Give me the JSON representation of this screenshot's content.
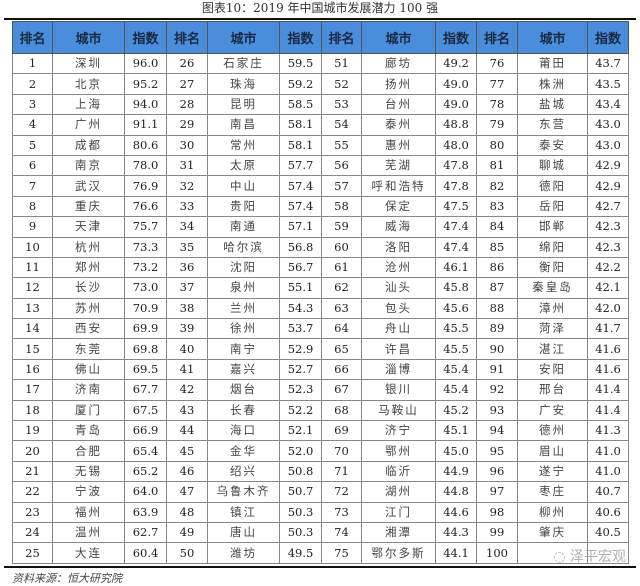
{
  "title": "图表10：2019 年中国城市发展潜力 100 强",
  "headers": {
    "rank": "排名",
    "city": "城市",
    "index": "指数"
  },
  "groups": [
    [
      [
        "1",
        "深圳",
        "96.0"
      ],
      [
        "2",
        "北京",
        "95.2"
      ],
      [
        "3",
        "上海",
        "94.0"
      ],
      [
        "4",
        "广州",
        "91.1"
      ],
      [
        "5",
        "成都",
        "80.6"
      ],
      [
        "6",
        "南京",
        "78.0"
      ],
      [
        "7",
        "武汉",
        "76.9"
      ],
      [
        "8",
        "重庆",
        "76.6"
      ],
      [
        "9",
        "天津",
        "75.7"
      ],
      [
        "10",
        "杭州",
        "73.3"
      ],
      [
        "11",
        "郑州",
        "73.2"
      ],
      [
        "12",
        "长沙",
        "73.0"
      ],
      [
        "13",
        "苏州",
        "70.9"
      ],
      [
        "14",
        "西安",
        "69.9"
      ],
      [
        "15",
        "东莞",
        "69.8"
      ],
      [
        "16",
        "佛山",
        "69.5"
      ],
      [
        "17",
        "济南",
        "67.7"
      ],
      [
        "18",
        "厦门",
        "67.5"
      ],
      [
        "19",
        "青岛",
        "66.9"
      ],
      [
        "20",
        "合肥",
        "65.4"
      ],
      [
        "21",
        "无锡",
        "65.2"
      ],
      [
        "22",
        "宁波",
        "64.0"
      ],
      [
        "23",
        "福州",
        "63.9"
      ],
      [
        "24",
        "温州",
        "62.7"
      ],
      [
        "25",
        "大连",
        "60.4"
      ]
    ],
    [
      [
        "26",
        "石家庄",
        "59.5"
      ],
      [
        "27",
        "珠海",
        "59.2"
      ],
      [
        "28",
        "昆明",
        "58.5"
      ],
      [
        "29",
        "南昌",
        "58.1"
      ],
      [
        "30",
        "常州",
        "58.1"
      ],
      [
        "31",
        "太原",
        "57.7"
      ],
      [
        "32",
        "中山",
        "57.4"
      ],
      [
        "33",
        "贵阳",
        "57.4"
      ],
      [
        "34",
        "南通",
        "57.1"
      ],
      [
        "35",
        "哈尔滨",
        "56.8"
      ],
      [
        "36",
        "沈阳",
        "56.7"
      ],
      [
        "37",
        "泉州",
        "55.1"
      ],
      [
        "38",
        "兰州",
        "54.3"
      ],
      [
        "39",
        "徐州",
        "53.7"
      ],
      [
        "40",
        "南宁",
        "52.9"
      ],
      [
        "41",
        "嘉兴",
        "52.7"
      ],
      [
        "42",
        "烟台",
        "52.3"
      ],
      [
        "43",
        "长春",
        "52.2"
      ],
      [
        "44",
        "海口",
        "52.1"
      ],
      [
        "45",
        "金华",
        "52.0"
      ],
      [
        "46",
        "绍兴",
        "50.8"
      ],
      [
        "47",
        "乌鲁木齐",
        "50.7"
      ],
      [
        "48",
        "镇江",
        "50.3"
      ],
      [
        "49",
        "唐山",
        "50.3"
      ],
      [
        "50",
        "潍坊",
        "49.5"
      ]
    ],
    [
      [
        "51",
        "廊坊",
        "49.2"
      ],
      [
        "52",
        "扬州",
        "49.0"
      ],
      [
        "53",
        "台州",
        "49.0"
      ],
      [
        "54",
        "泰州",
        "48.8"
      ],
      [
        "55",
        "惠州",
        "48.0"
      ],
      [
        "56",
        "芜湖",
        "47.8"
      ],
      [
        "57",
        "呼和浩特",
        "47.8"
      ],
      [
        "58",
        "保定",
        "47.5"
      ],
      [
        "59",
        "威海",
        "47.4"
      ],
      [
        "60",
        "洛阳",
        "47.4"
      ],
      [
        "61",
        "沧州",
        "46.1"
      ],
      [
        "62",
        "汕头",
        "45.8"
      ],
      [
        "63",
        "包头",
        "45.6"
      ],
      [
        "64",
        "舟山",
        "45.5"
      ],
      [
        "65",
        "许昌",
        "45.5"
      ],
      [
        "66",
        "淄博",
        "45.4"
      ],
      [
        "67",
        "银川",
        "45.4"
      ],
      [
        "68",
        "马鞍山",
        "45.2"
      ],
      [
        "69",
        "济宁",
        "45.1"
      ],
      [
        "70",
        "鄂州",
        "45.0"
      ],
      [
        "71",
        "临沂",
        "44.9"
      ],
      [
        "72",
        "湖州",
        "44.8"
      ],
      [
        "73",
        "江门",
        "44.6"
      ],
      [
        "74",
        "湘潭",
        "44.3"
      ],
      [
        "75",
        "鄂尔多斯",
        "44.1"
      ]
    ],
    [
      [
        "76",
        "莆田",
        "43.7"
      ],
      [
        "77",
        "株洲",
        "43.5"
      ],
      [
        "78",
        "盐城",
        "43.4"
      ],
      [
        "79",
        "东营",
        "43.0"
      ],
      [
        "80",
        "泰安",
        "43.0"
      ],
      [
        "81",
        "聊城",
        "42.9"
      ],
      [
        "82",
        "德阳",
        "42.9"
      ],
      [
        "83",
        "岳阳",
        "42.7"
      ],
      [
        "84",
        "邯郸",
        "42.3"
      ],
      [
        "85",
        "绵阳",
        "42.3"
      ],
      [
        "86",
        "衡阳",
        "42.2"
      ],
      [
        "87",
        "秦皇岛",
        "42.1"
      ],
      [
        "88",
        "漳州",
        "42.0"
      ],
      [
        "89",
        "菏泽",
        "41.7"
      ],
      [
        "90",
        "湛江",
        "41.6"
      ],
      [
        "91",
        "安阳",
        "41.6"
      ],
      [
        "92",
        "邢台",
        "41.4"
      ],
      [
        "93",
        "广安",
        "41.4"
      ],
      [
        "94",
        "德州",
        "41.3"
      ],
      [
        "95",
        "眉山",
        "41.0"
      ],
      [
        "96",
        "遂宁",
        "41.0"
      ],
      [
        "97",
        "枣庄",
        "40.7"
      ],
      [
        "98",
        "柳州",
        "40.6"
      ],
      [
        "99",
        "肇庆",
        "40.5"
      ],
      [
        "100",
        "",
        ""
      ]
    ]
  ],
  "source": "资料来源：恒大研究院",
  "watermark": "泽平宏观",
  "colors": {
    "header_bg": "#4a8edb"
  }
}
